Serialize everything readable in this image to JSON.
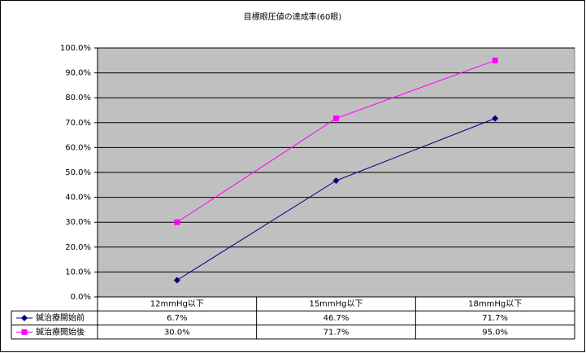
{
  "chart_data": {
    "type": "line",
    "title": "目標眼圧値の達成率(60眼)",
    "categories": [
      "12mmHg以下",
      "15mmHg以下",
      "18mmHg以下"
    ],
    "series": [
      {
        "name": "鍼治療開始前",
        "color": "#000080",
        "marker": "diamond",
        "values": [
          6.7,
          46.7,
          71.7
        ],
        "value_labels": [
          "6.7%",
          "46.7%",
          "71.7%"
        ]
      },
      {
        "name": "鍼治療開始後",
        "color": "#ff00ff",
        "marker": "square",
        "values": [
          30.0,
          71.7,
          95.0
        ],
        "value_labels": [
          "30.0%",
          "71.7%",
          "95.0%"
        ]
      }
    ],
    "ylim": [
      0,
      100
    ],
    "yticks": [
      {
        "value": 0,
        "label": "0.0%"
      },
      {
        "value": 10,
        "label": "10.0%"
      },
      {
        "value": 20,
        "label": "20.0%"
      },
      {
        "value": 30,
        "label": "30.0%"
      },
      {
        "value": 40,
        "label": "40.0%"
      },
      {
        "value": 50,
        "label": "50.0%"
      },
      {
        "value": 60,
        "label": "60.0%"
      },
      {
        "value": 70,
        "label": "70.0%"
      },
      {
        "value": 80,
        "label": "80.0%"
      },
      {
        "value": 90,
        "label": "90.0%"
      },
      {
        "value": 100,
        "label": "100.0%"
      }
    ],
    "grid": true,
    "plot_background": "#c0c0c0",
    "data_table": true
  }
}
